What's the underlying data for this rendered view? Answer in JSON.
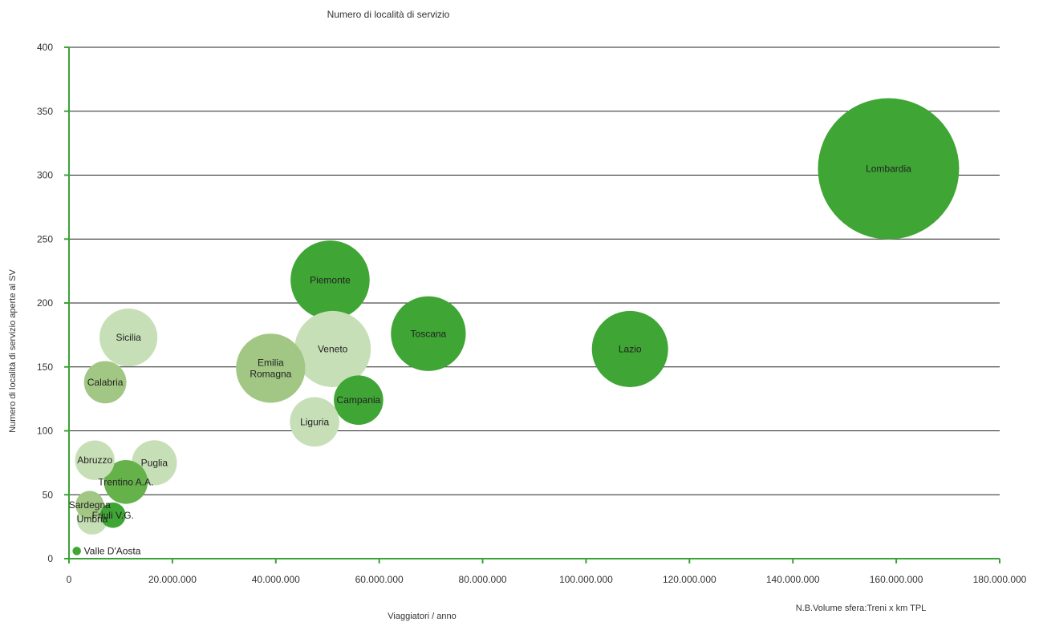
{
  "chart_data": {
    "type": "bubble",
    "title": "Numero di località di servizio",
    "xlabel": "Viaggiatori / anno",
    "ylabel": "Numero di località di servizio aperte al SV",
    "note": "N.B.Volume sfera:Treni x km TPL",
    "xlim": [
      0,
      180000000
    ],
    "ylim": [
      0,
      400
    ],
    "x_ticks": [
      "0",
      "20.000.000",
      "40.000.000",
      "60.000.000",
      "80.000.000",
      "100.000.000",
      "120.000.000",
      "140.000.000",
      "160.000.000",
      "180.000.000"
    ],
    "y_ticks": [
      "0",
      "50",
      "100",
      "150",
      "200",
      "250",
      "300",
      "350",
      "400"
    ],
    "grid": "horizontal",
    "colors": {
      "axis": "#3aa335",
      "grid": "#222222",
      "dark": "#3fa535",
      "medium": "#66b24a",
      "soft": "#a2c784",
      "light": "#c7dfb7"
    },
    "points": [
      {
        "label": "Lombardia",
        "x": 158500000,
        "y": 305,
        "size": 1.0,
        "shade": "dark"
      },
      {
        "label": "Lazio",
        "x": 108500000,
        "y": 164,
        "size": 0.54,
        "shade": "dark"
      },
      {
        "label": "Toscana",
        "x": 69500000,
        "y": 176,
        "size": 0.53,
        "shade": "dark"
      },
      {
        "label": "Piemonte",
        "x": 50500000,
        "y": 218,
        "size": 0.56,
        "shade": "dark"
      },
      {
        "label": "Campania",
        "x": 56000000,
        "y": 124,
        "size": 0.35,
        "shade": "dark"
      },
      {
        "label": "Veneto",
        "x": 51000000,
        "y": 164,
        "size": 0.54,
        "shade": "light"
      },
      {
        "label": "Emilia\nRomagna",
        "x": 39000000,
        "y": 149,
        "size": 0.49,
        "shade": "soft"
      },
      {
        "label": "Liguria",
        "x": 47500000,
        "y": 107,
        "size": 0.35,
        "shade": "light"
      },
      {
        "label": "Sicilia",
        "x": 11500000,
        "y": 173,
        "size": 0.41,
        "shade": "light"
      },
      {
        "label": "Calabria",
        "x": 7000000,
        "y": 138,
        "size": 0.3,
        "shade": "soft"
      },
      {
        "label": "Puglia",
        "x": 16500000,
        "y": 75,
        "size": 0.32,
        "shade": "light"
      },
      {
        "label": "Abruzzo",
        "x": 5000000,
        "y": 77,
        "size": 0.28,
        "shade": "light"
      },
      {
        "label": "Trentino A.A.",
        "x": 11000000,
        "y": 60,
        "size": 0.31,
        "shade": "medium"
      },
      {
        "label": "Friuli V.G.",
        "x": 8500000,
        "y": 34,
        "size": 0.18,
        "shade": "dark"
      },
      {
        "label": "Sardegna",
        "x": 4000000,
        "y": 42,
        "size": 0.2,
        "shade": "soft"
      },
      {
        "label": "Umbria",
        "x": 4500000,
        "y": 31,
        "size": 0.22,
        "shade": "light"
      },
      {
        "label": "Valle D'Aosta",
        "x": 1500000,
        "y": 6,
        "size": 0.06,
        "shade": "dark"
      }
    ]
  }
}
